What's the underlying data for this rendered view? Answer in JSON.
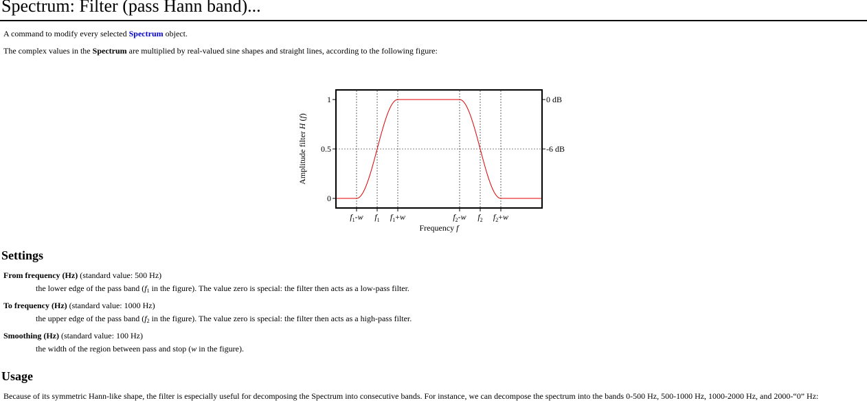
{
  "page": {
    "title": "Spectrum: Filter (pass Hann band)..."
  },
  "intro": {
    "line1_pre": "A command to modify every selected ",
    "line1_link": "Spectrum",
    "line1_post": " object.",
    "line2_pre": "The complex values in the ",
    "line2_bold": "Spectrum",
    "line2_post": " are multiplied by real-valued sine shapes and straight lines, according to the following figure:"
  },
  "figure": {
    "ylabel_pre": "Amplitude filter ",
    "ylabel_func": "H",
    "ylabel_open": " (",
    "ylabel_var": "f",
    "ylabel_close": ")",
    "xlabel_pre": "Frequency ",
    "xlabel_var": "f",
    "y_ticks": [
      "1",
      "0.5",
      "0"
    ],
    "right_ticks": [
      "0 dB",
      "-6 dB"
    ],
    "x_ticks": [
      {
        "var": "f",
        "sub": "1",
        "suffix": "-",
        "suffix_var": "w"
      },
      {
        "var": "f",
        "sub": "1",
        "suffix": "",
        "suffix_var": ""
      },
      {
        "var": "f",
        "sub": "1",
        "suffix": "+",
        "suffix_var": "w"
      },
      {
        "var": "f",
        "sub": "2",
        "suffix": "-",
        "suffix_var": "w"
      },
      {
        "var": "f",
        "sub": "2",
        "suffix": "",
        "suffix_var": ""
      },
      {
        "var": "f",
        "sub": "2",
        "suffix": "+",
        "suffix_var": "w"
      }
    ],
    "curve_color": "#e00000",
    "frame_color": "#000000"
  },
  "settings": {
    "heading": "Settings",
    "items": [
      {
        "name": "From frequency (Hz)",
        "std": " (standard value: 500 Hz)",
        "def_pre": "the lower edge of the pass band (",
        "def_var": "f",
        "def_sub": "1",
        "def_post": " in the figure). The value zero is special: the filter then acts as a low-pass filter."
      },
      {
        "name": "To frequency (Hz)",
        "std": " (standard value: 1000 Hz)",
        "def_pre": "the upper edge of the pass band (",
        "def_var": "f",
        "def_sub": "2",
        "def_post": " in the figure). The value zero is special: the filter then acts as a high-pass filter."
      },
      {
        "name": "Smoothing (Hz)",
        "std": " (standard value: 100 Hz)",
        "def_pre": "the width of the region between pass and stop (",
        "def_var": "w",
        "def_sub": "",
        "def_post": " in the figure)."
      }
    ]
  },
  "usage": {
    "heading": "Usage",
    "text": "Because of its symmetric Hann-like shape, the filter is especially useful for decomposing the Spectrum into consecutive bands. For instance, we can decompose the spectrum into the bands 0-500 Hz, 500-1000 Hz, 1000-2000 Hz, and 2000-“0” Hz:"
  }
}
